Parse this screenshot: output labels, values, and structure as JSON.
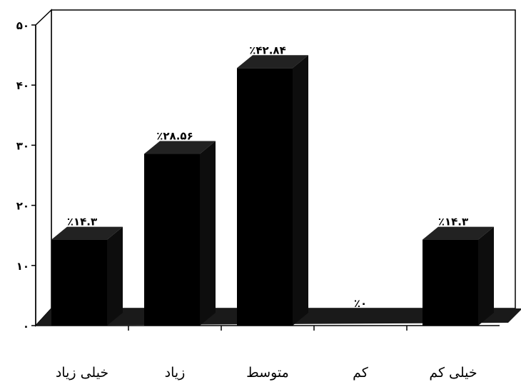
{
  "chart_data": {
    "type": "bar",
    "categories": [
      "خیلی زیاد",
      "زیاد",
      "متوسط",
      "کم",
      "خیلی کم"
    ],
    "values": [
      14.3,
      28.56,
      42.84,
      0,
      14.3
    ],
    "data_labels": [
      "٪۱۴.۳",
      "٪۲۸.۵۶",
      "٪۴۲.۸۴",
      "٪۰",
      "٪۱۴.۳"
    ],
    "ylim": [
      0,
      50
    ],
    "yticks": [
      0,
      10,
      20,
      30,
      40,
      50
    ],
    "ytick_labels": [
      "۰",
      "۱۰",
      "۲۰",
      "۳۰",
      "۴۰",
      "۵۰"
    ],
    "title": "",
    "xlabel": "",
    "ylabel": "",
    "grid": false,
    "style": "3d-bar",
    "bar_color": "#000000"
  }
}
